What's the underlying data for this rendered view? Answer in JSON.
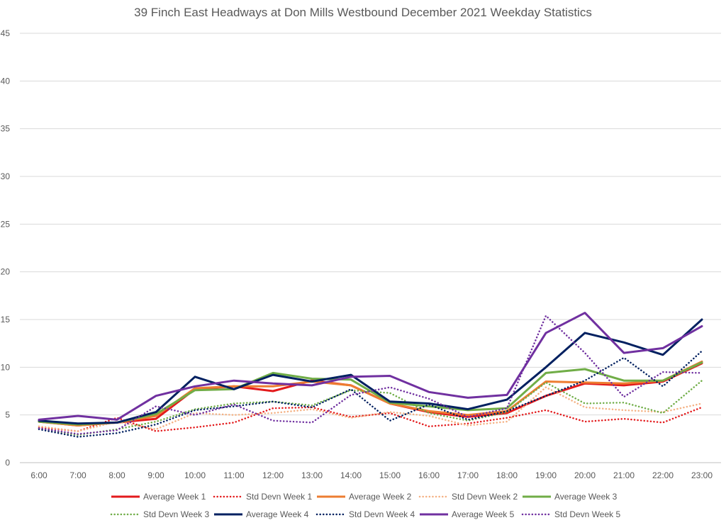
{
  "chart_data": {
    "type": "line",
    "title": "39 Finch East Headways at Don Mills Westbound December 2021 Weekday Statistics",
    "xlabel": "",
    "ylabel": "",
    "ylim": [
      0,
      45
    ],
    "yticks": [
      0,
      5,
      10,
      15,
      20,
      25,
      30,
      35,
      40,
      45
    ],
    "grid": "horizontal",
    "legend_position": "bottom",
    "categories": [
      "6:00",
      "7:00",
      "8:00",
      "9:00",
      "10:00",
      "11:00",
      "12:00",
      "13:00",
      "14:00",
      "15:00",
      "16:00",
      "17:00",
      "18:00",
      "19:00",
      "20:00",
      "21:00",
      "22:00",
      "23:00"
    ],
    "series": [
      {
        "name": "Average Week 1",
        "color": "#E31A1C",
        "style": "solid",
        "values": [
          4.3,
          3.9,
          4.2,
          4.6,
          7.7,
          8.0,
          7.5,
          8.6,
          8.1,
          6.2,
          5.3,
          4.8,
          5.2,
          7.0,
          8.3,
          8.1,
          8.5,
          10.4
        ]
      },
      {
        "name": "Std Devn Week 1",
        "color": "#E31A1C",
        "style": "dotted",
        "values": [
          3.7,
          3.3,
          4.7,
          3.3,
          3.7,
          4.2,
          5.7,
          5.8,
          4.8,
          5.2,
          3.8,
          4.1,
          4.7,
          5.5,
          4.3,
          4.6,
          4.2,
          5.8
        ]
      },
      {
        "name": "Average Week 2",
        "color": "#ED7D31",
        "style": "solid",
        "values": [
          4.3,
          3.9,
          4.2,
          4.9,
          7.8,
          8.0,
          8.0,
          8.5,
          8.1,
          6.2,
          5.4,
          5.0,
          5.4,
          8.5,
          8.4,
          8.3,
          8.6,
          10.6
        ]
      },
      {
        "name": "Std Devn Week 2",
        "color": "#F4B183",
        "style": "dotted",
        "values": [
          3.8,
          3.3,
          4.3,
          3.5,
          5.2,
          5.0,
          5.2,
          5.6,
          4.7,
          5.3,
          4.9,
          3.9,
          4.3,
          7.9,
          5.8,
          5.5,
          5.3,
          6.2
        ]
      },
      {
        "name": "Average Week 3",
        "color": "#70AD47",
        "style": "solid",
        "values": [
          4.3,
          4.0,
          4.2,
          5.1,
          7.6,
          7.7,
          9.4,
          8.8,
          8.7,
          6.3,
          5.9,
          5.5,
          5.7,
          9.4,
          9.8,
          8.6,
          8.6,
          10.5
        ]
      },
      {
        "name": "Std Devn Week 3",
        "color": "#70AD47",
        "style": "dotted",
        "values": [
          3.6,
          2.9,
          3.5,
          4.3,
          5.6,
          6.2,
          6.4,
          6.0,
          7.6,
          7.3,
          5.2,
          4.4,
          5.3,
          8.4,
          6.2,
          6.3,
          5.2,
          8.6
        ]
      },
      {
        "name": "Average Week 4",
        "color": "#002060",
        "style": "solid",
        "values": [
          4.4,
          4.1,
          4.2,
          5.3,
          9.0,
          7.7,
          9.2,
          8.5,
          9.2,
          6.4,
          6.2,
          5.6,
          6.6,
          10.0,
          13.6,
          12.6,
          11.3,
          15.0
        ]
      },
      {
        "name": "Std Devn Week 4",
        "color": "#002060",
        "style": "dotted",
        "values": [
          3.5,
          2.7,
          3.1,
          4.0,
          5.5,
          5.9,
          6.4,
          5.8,
          7.7,
          4.4,
          6.1,
          4.5,
          5.4,
          7.0,
          8.6,
          11.0,
          8.0,
          11.7
        ]
      },
      {
        "name": "Average Week 5",
        "color": "#7030A0",
        "style": "solid",
        "values": [
          4.5,
          4.9,
          4.5,
          7.0,
          8.0,
          8.6,
          8.3,
          8.1,
          9.0,
          9.1,
          7.4,
          6.8,
          7.1,
          13.6,
          15.7,
          11.5,
          12.0,
          14.3
        ]
      },
      {
        "name": "Std Devn Week 5",
        "color": "#7030A0",
        "style": "dotted",
        "values": [
          3.6,
          3.0,
          3.4,
          5.9,
          5.0,
          6.1,
          4.4,
          4.2,
          7.1,
          7.9,
          6.7,
          4.8,
          5.7,
          15.4,
          11.5,
          6.9,
          9.5,
          9.4
        ]
      }
    ]
  }
}
